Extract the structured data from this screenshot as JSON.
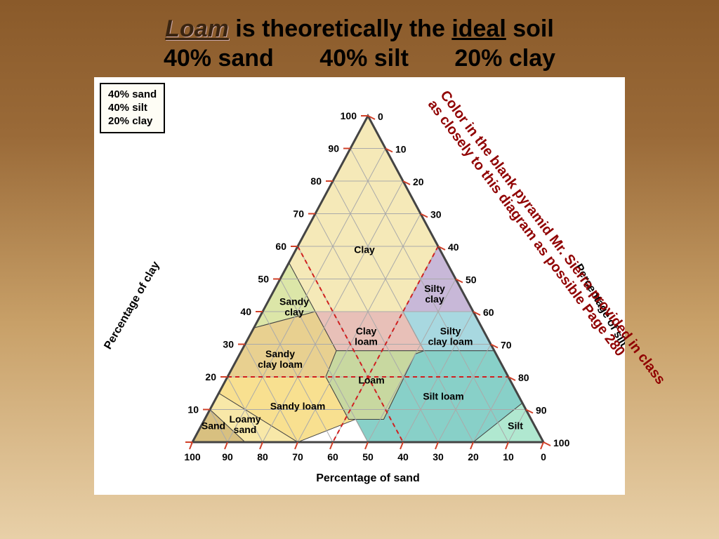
{
  "title": {
    "loam": "Loam",
    "rest": " is theoretically the ",
    "ideal": "ideal",
    "tail": " soil"
  },
  "subtitle": {
    "sand": "40% sand",
    "silt": "40% silt",
    "clay": "20% clay"
  },
  "legend": {
    "l1": "40% sand",
    "l2": "40% silt",
    "l3": "20% clay"
  },
  "axes": {
    "clay": "Percentage of clay",
    "silt": "Percentage of silt",
    "sand": "Percentage of sand"
  },
  "ticks_left": [
    "100",
    "90",
    "80",
    "70",
    "60",
    "50",
    "40",
    "30",
    "20",
    "10"
  ],
  "ticks_right": [
    "0",
    "10",
    "20",
    "30",
    "40",
    "50",
    "60",
    "70",
    "80",
    "90"
  ],
  "ticks_bottom": [
    "100",
    "90",
    "80",
    "70",
    "60",
    "50",
    "40",
    "30",
    "20",
    "10",
    "0"
  ],
  "bottom_right_100": "100",
  "regions": {
    "clay": "Clay",
    "sandy_clay": "Sandy\nclay",
    "silty_clay": "Silty\nclay",
    "clay_loam": "Clay\nloam",
    "sandy_clay_loam": "Sandy\nclay loam",
    "silty_clay_loam": "Silty\nclay loam",
    "sandy_loam": "Sandy loam",
    "loam": "Loam",
    "silt_loam": "Silt loam",
    "loamy_sand": "Loamy\nsand",
    "sand": "Sand",
    "silt": "Silt"
  },
  "region_fills": {
    "clay": "#f5e9b8",
    "sandy_clay": "#dce6a8",
    "silty_clay": "#c8b8d8",
    "clay_loam": "#e8c0b8",
    "sandy_clay_loam": "#e8d090",
    "silty_clay_loam": "#a8d8e0",
    "sandy_loam": "#f8e090",
    "loam": "#c8d8a0",
    "silt_loam": "#88d0c8",
    "loamy_sand": "#f8e8a8",
    "sand": "#d8c080",
    "silt": "#b0e8d0"
  },
  "tri_border": "#444",
  "grid_color": "#aaa",
  "tick_color": "#d04028",
  "loam_dash": "#d02020",
  "overlay": {
    "line1": "Color in the blank pyramid Mr. Sierra provided in class",
    "line2": "as closely to this diagram as possible  Page 280",
    "color": "#900000"
  }
}
